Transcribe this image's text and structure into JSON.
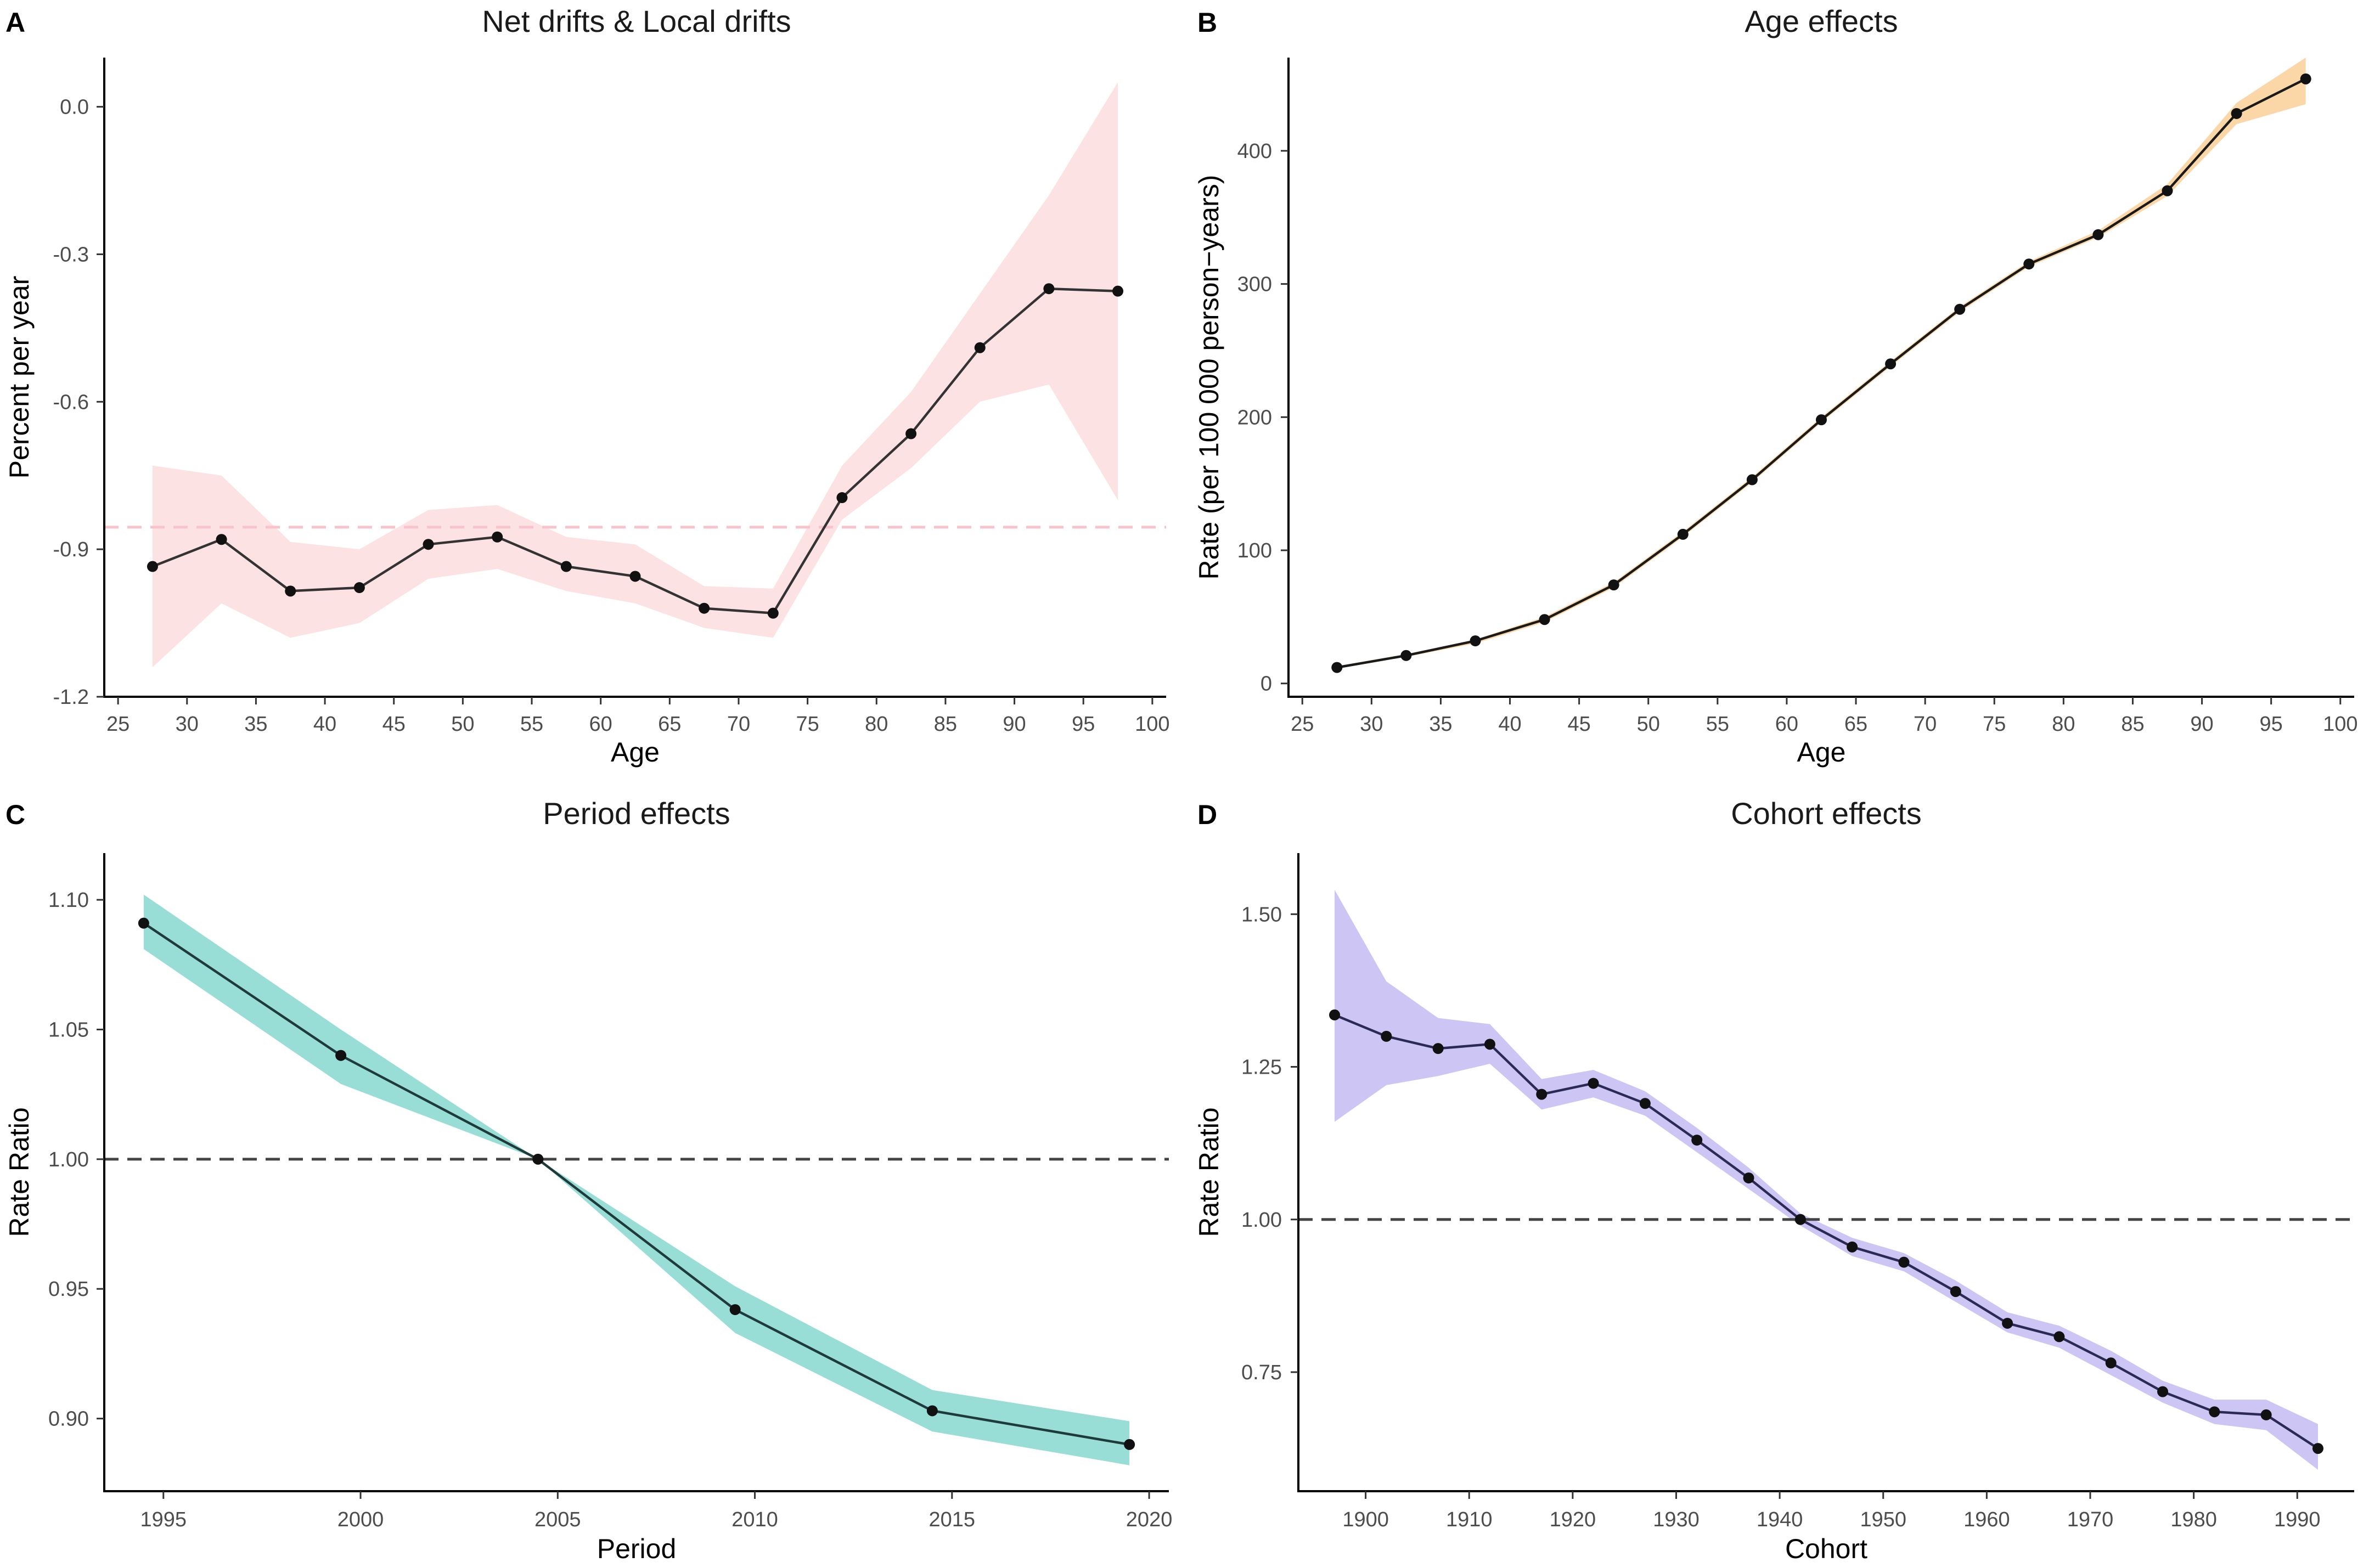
{
  "chart_data": [
    {
      "type": "line",
      "panel_label": "A",
      "title": "Net drifts & Local drifts",
      "xlabel": "Age",
      "ylabel": "Percent per year",
      "xlim": [
        24,
        101
      ],
      "ylim": [
        -1.2,
        0.1
      ],
      "xticks": [
        25,
        30,
        35,
        40,
        45,
        50,
        55,
        60,
        65,
        70,
        75,
        80,
        85,
        90,
        95,
        100
      ],
      "yticks": [
        -1.2,
        -0.9,
        -0.6,
        -0.3,
        0.0
      ],
      "ytick_labels": [
        "-1.2",
        "-0.9",
        "-0.6",
        "-0.3",
        "0.0"
      ],
      "x": [
        27.5,
        32.5,
        37.5,
        42.5,
        47.5,
        52.5,
        57.5,
        62.5,
        67.5,
        72.5,
        77.5,
        82.5,
        87.5,
        92.5,
        97.5
      ],
      "y": [
        -0.935,
        -0.88,
        -0.985,
        -0.978,
        -0.89,
        -0.875,
        -0.935,
        -0.955,
        -1.02,
        -1.03,
        -0.795,
        -0.665,
        -0.49,
        -0.37,
        -0.375
      ],
      "lower": [
        -1.14,
        -1.01,
        -1.08,
        -1.05,
        -0.96,
        -0.94,
        -0.985,
        -1.01,
        -1.06,
        -1.08,
        -0.84,
        -0.735,
        -0.6,
        -0.565,
        -0.8
      ],
      "upper": [
        -0.73,
        -0.75,
        -0.885,
        -0.9,
        -0.82,
        -0.81,
        -0.875,
        -0.89,
        -0.975,
        -0.98,
        -0.73,
        -0.58,
        -0.38,
        -0.18,
        0.05
      ],
      "reference_line": -0.855,
      "band_color": "#fde2e4",
      "line_color": "#333333",
      "reference_color": "#f8c3cb",
      "grid": false
    },
    {
      "type": "line",
      "panel_label": "B",
      "title": "Age effects",
      "xlabel": "Age",
      "ylabel": "Rate (per 100 000 person−years)",
      "xlim": [
        24,
        101
      ],
      "ylim": [
        -10,
        470
      ],
      "xticks": [
        25,
        30,
        35,
        40,
        45,
        50,
        55,
        60,
        65,
        70,
        75,
        80,
        85,
        90,
        95,
        100
      ],
      "yticks": [
        0,
        100,
        200,
        300,
        400
      ],
      "ytick_labels": [
        "0",
        "100",
        "200",
        "300",
        "400"
      ],
      "x": [
        27.5,
        32.5,
        37.5,
        42.5,
        47.5,
        52.5,
        57.5,
        62.5,
        67.5,
        72.5,
        77.5,
        82.5,
        87.5,
        92.5,
        97.5
      ],
      "y": [
        12,
        21,
        32,
        48,
        74,
        112,
        153,
        198,
        240,
        281,
        315,
        337,
        370,
        428,
        454
      ],
      "lower": [
        11,
        20,
        30,
        46,
        72,
        110,
        151,
        196,
        238,
        279,
        313,
        335,
        366,
        420,
        435
      ],
      "upper": [
        13,
        22,
        33,
        50,
        76,
        114,
        155,
        200,
        242,
        283,
        317,
        340,
        375,
        436,
        470
      ],
      "band_color": "#fbd7a8",
      "line_color": "#1a1a1a",
      "grid": false
    },
    {
      "type": "line",
      "panel_label": "C",
      "title": "Period effects",
      "xlabel": "Period",
      "ylabel": "Rate Ratio",
      "xlim": [
        1993.5,
        2020.5
      ],
      "ylim": [
        0.872,
        1.118
      ],
      "xticks": [
        1995,
        2000,
        2005,
        2010,
        2015,
        2020
      ],
      "yticks": [
        0.9,
        0.95,
        1.0,
        1.05,
        1.1
      ],
      "ytick_labels": [
        "0.90",
        "0.95",
        "1.00",
        "1.05",
        "1.10"
      ],
      "x": [
        1994.5,
        1999.5,
        2004.5,
        2009.5,
        2014.5,
        2019.5
      ],
      "y": [
        1.091,
        1.04,
        1.0,
        0.942,
        0.903,
        0.89
      ],
      "lower": [
        1.081,
        1.029,
        1.0,
        0.933,
        0.895,
        0.882
      ],
      "upper": [
        1.102,
        1.05,
        1.0,
        0.951,
        0.911,
        0.899
      ],
      "reference_line": 1.0,
      "band_color": "#99ddd7",
      "line_color": "#1f3a3a",
      "reference_color": "#444444",
      "grid": false
    },
    {
      "type": "line",
      "panel_label": "D",
      "title": "Cohort effects",
      "xlabel": "Cohort",
      "ylabel": "Rate Ratio",
      "xlim": [
        1893.5,
        1995.5
      ],
      "ylim": [
        0.555,
        1.6
      ],
      "xticks": [
        1900,
        1910,
        1920,
        1930,
        1940,
        1950,
        1960,
        1970,
        1980,
        1990
      ],
      "yticks": [
        0.75,
        1.0,
        1.25,
        1.5
      ],
      "ytick_labels": [
        "0.75",
        "1.00",
        "1.25",
        "1.50"
      ],
      "x": [
        1897,
        1902,
        1907,
        1912,
        1917,
        1922,
        1927,
        1932,
        1937,
        1942,
        1947,
        1952,
        1957,
        1962,
        1967,
        1972,
        1977,
        1982,
        1987,
        1992
      ],
      "y": [
        1.335,
        1.3,
        1.28,
        1.287,
        1.205,
        1.223,
        1.19,
        1.13,
        1.068,
        1.0,
        0.955,
        0.93,
        0.882,
        0.83,
        0.808,
        0.765,
        0.718,
        0.685,
        0.68,
        0.625
      ],
      "lower": [
        1.16,
        1.22,
        1.235,
        1.255,
        1.18,
        1.2,
        1.17,
        1.11,
        1.05,
        0.99,
        0.94,
        0.915,
        0.865,
        0.815,
        0.79,
        0.745,
        0.7,
        0.665,
        0.655,
        0.59
      ],
      "upper": [
        1.54,
        1.39,
        1.33,
        1.32,
        1.23,
        1.245,
        1.21,
        1.15,
        1.085,
        1.01,
        0.97,
        0.945,
        0.9,
        0.848,
        0.826,
        0.785,
        0.736,
        0.705,
        0.705,
        0.665
      ],
      "reference_line": 1.0,
      "band_color": "#cdc6f4",
      "line_color": "#2a2a55",
      "reference_color": "#444444",
      "grid": false
    }
  ]
}
